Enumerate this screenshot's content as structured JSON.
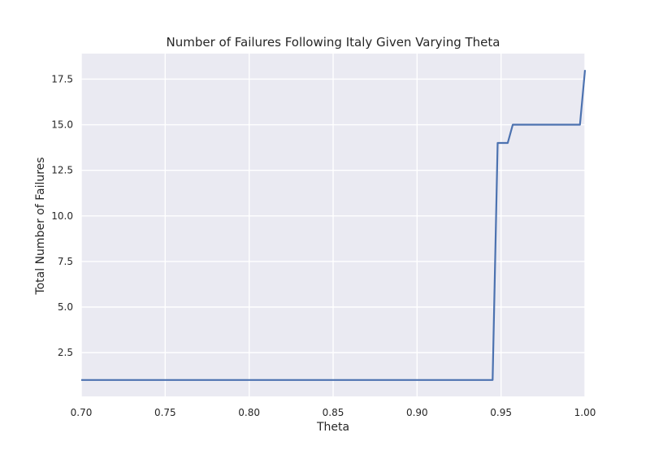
{
  "chart_data": {
    "type": "line",
    "title": "Number of Failures Following Italy Given Varying Theta",
    "xlabel": "Theta",
    "ylabel": "Total Number of Failures",
    "xlim": [
      0.7,
      1.0
    ],
    "ylim": [
      0.1,
      18.9
    ],
    "x_ticks": [
      "0.70",
      "0.75",
      "0.80",
      "0.85",
      "0.90",
      "0.95",
      "1.00"
    ],
    "y_ticks": [
      "2.5",
      "5.0",
      "7.5",
      "10.0",
      "12.5",
      "15.0",
      "17.5"
    ],
    "grid": true,
    "series": [
      {
        "color": "#4c72b0",
        "x": [
          0.7,
          0.945,
          0.948,
          0.954,
          0.957,
          0.997,
          1.0
        ],
        "y": [
          1,
          1,
          14,
          14,
          15,
          15,
          18
        ]
      }
    ]
  },
  "colors": {
    "plot_background": "#eaeaf2",
    "grid": "#ffffff",
    "line": "#4c72b0"
  }
}
